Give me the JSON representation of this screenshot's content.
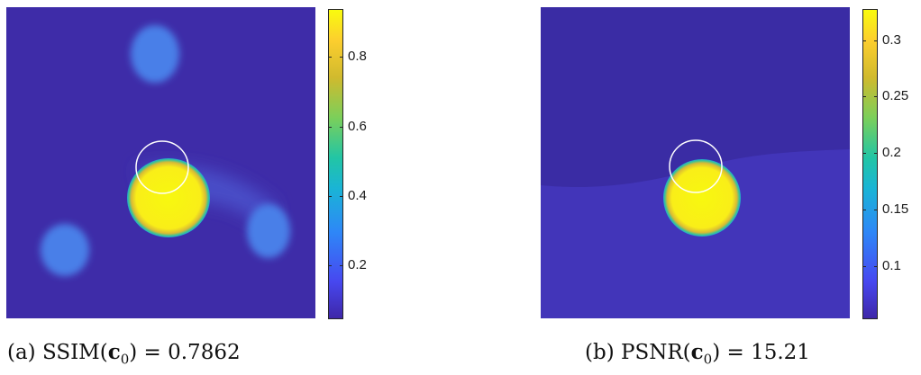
{
  "chart_data": [
    {
      "type": "heatmap",
      "caption": {
        "prefix": "(a) SSIM(",
        "var": "c",
        "sub": "0",
        "suffix": ") = 0.7862"
      },
      "colorbar": {
        "min": 0.0,
        "max": 0.91,
        "ticks": [
          {
            "value": 0.8,
            "label": "0.8"
          },
          {
            "value": 0.6,
            "label": "0.6"
          },
          {
            "value": 0.4,
            "label": "0.4"
          },
          {
            "value": 0.2,
            "label": "0.2"
          }
        ]
      },
      "background_value": 0.03,
      "features": [
        {
          "kind": "blob",
          "value": 0.22,
          "cx": 0.48,
          "cy": 0.15,
          "rx": 0.08,
          "ry": 0.09
        },
        {
          "kind": "blob",
          "value": 0.22,
          "cx": 0.19,
          "cy": 0.78,
          "rx": 0.08,
          "ry": 0.085
        },
        {
          "kind": "blob",
          "value": 0.22,
          "cx": 0.85,
          "cy": 0.72,
          "rx": 0.07,
          "ry": 0.085
        },
        {
          "kind": "band",
          "value": 0.12
        },
        {
          "kind": "disk",
          "value": 0.91,
          "cx": 0.5,
          "cy": 0.6,
          "rx": 0.125,
          "ry": 0.125
        }
      ],
      "reference_circle": {
        "cx": 0.505,
        "cy": 0.5,
        "r": 0.085
      }
    },
    {
      "type": "heatmap",
      "caption": {
        "prefix": "(b) PSNR(",
        "var": "c",
        "sub": "0",
        "suffix": ") = 15.21"
      },
      "colorbar": {
        "min": 0.05,
        "max": 0.325,
        "ticks": [
          {
            "value": 0.3,
            "label": "0.3"
          },
          {
            "value": 0.25,
            "label": "0.25"
          },
          {
            "value": 0.2,
            "label": "0.2"
          },
          {
            "value": 0.15,
            "label": "0.15"
          },
          {
            "value": 0.1,
            "label": "0.1"
          }
        ]
      },
      "background_value": 0.065,
      "features": [
        {
          "kind": "region",
          "value": 0.075
        },
        {
          "kind": "disk",
          "value": 0.32,
          "cx": 0.51,
          "cy": 0.59,
          "rx": 0.125,
          "ry": 0.125
        }
      ],
      "reference_circle": {
        "cx": 0.5,
        "cy": 0.5,
        "r": 0.085
      }
    }
  ]
}
